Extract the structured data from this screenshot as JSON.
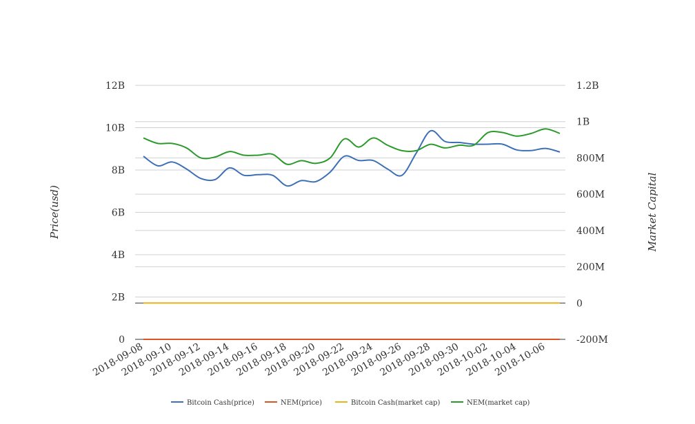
{
  "chart_data": {
    "type": "line",
    "title": "",
    "xlabel": "",
    "ylabel_left": "Price(usd)",
    "ylabel_right": "Market Capital",
    "x_tick_labels": [
      "2018-09-08",
      "2018-09-10",
      "2018-09-12",
      "2018-09-14",
      "2018-09-16",
      "2018-09-18",
      "2018-09-20",
      "2018-09-22",
      "2018-09-24",
      "2018-09-26",
      "2018-09-28",
      "2018-09-30",
      "2018-10-02",
      "2018-10-04",
      "2018-10-06"
    ],
    "y_left_ticks": [
      "0",
      "2B",
      "4B",
      "6B",
      "8B",
      "10B",
      "12B"
    ],
    "y_left_range": [
      0,
      12000000000
    ],
    "y_right_ticks": [
      "-200M",
      "0",
      "200M",
      "400M",
      "600M",
      "800M",
      "1B",
      "1.2B"
    ],
    "y_right_range": [
      -200000000,
      1200000000
    ],
    "grid": true,
    "legend_position": "bottom",
    "x": [
      "2018-09-08",
      "2018-09-09",
      "2018-09-10",
      "2018-09-11",
      "2018-09-12",
      "2018-09-13",
      "2018-09-14",
      "2018-09-15",
      "2018-09-16",
      "2018-09-17",
      "2018-09-18",
      "2018-09-19",
      "2018-09-20",
      "2018-09-21",
      "2018-09-22",
      "2018-09-23",
      "2018-09-24",
      "2018-09-25",
      "2018-09-26",
      "2018-09-27",
      "2018-09-28",
      "2018-09-29",
      "2018-09-30",
      "2018-10-01",
      "2018-10-02",
      "2018-10-03",
      "2018-10-04",
      "2018-10-05",
      "2018-10-06",
      "2018-10-07"
    ],
    "series": [
      {
        "name": "Bitcoin Cash(price)",
        "axis": "left",
        "color": "#3d6fb6",
        "values": [
          8650000000,
          8200000000,
          8380000000,
          8050000000,
          7600000000,
          7550000000,
          8100000000,
          7750000000,
          7780000000,
          7750000000,
          7250000000,
          7500000000,
          7450000000,
          7900000000,
          8650000000,
          8450000000,
          8450000000,
          8050000000,
          7750000000,
          8800000000,
          9850000000,
          9350000000,
          9300000000,
          9220000000,
          9220000000,
          9220000000,
          8950000000,
          8920000000,
          9020000000,
          8850000000
        ]
      },
      {
        "name": "NEM(price)",
        "axis": "left",
        "color": "#d9541e",
        "values": [
          0.09,
          0.09,
          0.09,
          0.09,
          0.09,
          0.09,
          0.09,
          0.09,
          0.09,
          0.09,
          0.09,
          0.09,
          0.09,
          0.09,
          0.09,
          0.09,
          0.09,
          0.09,
          0.09,
          0.09,
          0.09,
          0.09,
          0.09,
          0.09,
          0.09,
          0.09,
          0.09,
          0.09,
          0.09,
          0.09
        ]
      },
      {
        "name": "Bitcoin Cash(market cap)",
        "axis": "right",
        "color": "#e8b21a",
        "values": [
          0,
          0,
          0,
          0,
          0,
          0,
          0,
          0,
          0,
          0,
          0,
          0,
          0,
          0,
          0,
          0,
          0,
          0,
          0,
          0,
          0,
          0,
          0,
          0,
          0,
          0,
          0,
          0,
          0,
          0
        ]
      },
      {
        "name": "NEM(market cap)",
        "axis": "right",
        "color": "#2a9a2a",
        "values": [
          910000000,
          880000000,
          880000000,
          855000000,
          800000000,
          805000000,
          835000000,
          815000000,
          815000000,
          820000000,
          765000000,
          785000000,
          770000000,
          800000000,
          905000000,
          860000000,
          910000000,
          870000000,
          840000000,
          840000000,
          875000000,
          855000000,
          870000000,
          870000000,
          940000000,
          940000000,
          920000000,
          935000000,
          960000000,
          935000000
        ]
      }
    ]
  }
}
